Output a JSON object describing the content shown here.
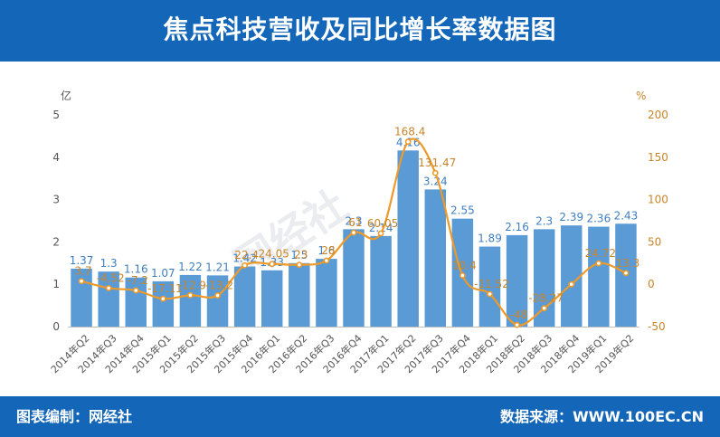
{
  "header": {
    "title": "焦点科技营收及同比增长率数据图"
  },
  "footer": {
    "left": "图表编制：网经社",
    "right": "数据来源：WWW.100EC.CN"
  },
  "watermark": "网经社",
  "colors": {
    "bar": "#5b9bd5",
    "line": "#ed9a2a",
    "header": "#1466b8",
    "bar_label": "#3f7fc0",
    "line_label": "#c9852a"
  },
  "chart_data": {
    "type": "bar",
    "categories": [
      "2014年Q2",
      "2014年Q3",
      "2014年Q4",
      "2015年Q1",
      "2015年Q2",
      "2015年Q3",
      "2015年Q4",
      "2016年Q1",
      "2016年Q2",
      "2016年Q3",
      "2016年Q4",
      "2017年Q1",
      "2017年Q2",
      "2017年Q3",
      "2017年Q4",
      "2018年Q1",
      "2018年Q2",
      "2018年Q3",
      "2018年Q4",
      "2019年Q1",
      "2019年Q2"
    ],
    "y_left_unit": "亿",
    "y_right_unit": "%",
    "ylim_left": [
      0,
      5
    ],
    "ylim_right": [
      -50,
      200
    ],
    "yticks_left": [
      0,
      1,
      2,
      3,
      4,
      5
    ],
    "yticks_right": [
      -50,
      0,
      50,
      100,
      150,
      200
    ],
    "series": [
      {
        "kind": "bar",
        "axis": "left",
        "values": [
          1.37,
          1.3,
          1.16,
          1.07,
          1.22,
          1.21,
          1.42,
          1.33,
          1.5,
          1.6,
          2.3,
          2.14,
          4.16,
          3.24,
          2.55,
          1.89,
          2.16,
          2.3,
          2.39,
          2.36,
          2.43
        ],
        "labels": [
          "1.37",
          "1.3",
          "1.16",
          "1.07",
          "1.22",
          "1.21",
          "1.42",
          "1.33",
          "1.5",
          "1.6",
          "2.3",
          "2.14",
          "4.16",
          "3.24",
          "2.55",
          "1.89",
          "2.16",
          "2.3",
          "2.39",
          "2.36",
          "2.43"
        ]
      },
      {
        "kind": "line",
        "axis": "right",
        "values": [
          3.7,
          -4.52,
          -7.2,
          -17.11,
          -12.9,
          -13.2,
          22.4,
          24.05,
          23,
          28,
          61,
          60.05,
          168.4,
          131.47,
          10.4,
          -11.52,
          -48,
          -28.27,
          0,
          24.72,
          13.3
        ],
        "labels": [
          "3.7",
          "-4.52",
          "-7.2",
          "-17.11",
          "-12.9",
          "-13.2",
          "22.4",
          "24.05",
          "23",
          "28",
          "61",
          "60.05",
          "168.4",
          "131.47",
          "10.4",
          "-11.52",
          "-48",
          "-28.27",
          "",
          "24.72",
          "13.3"
        ]
      }
    ]
  }
}
